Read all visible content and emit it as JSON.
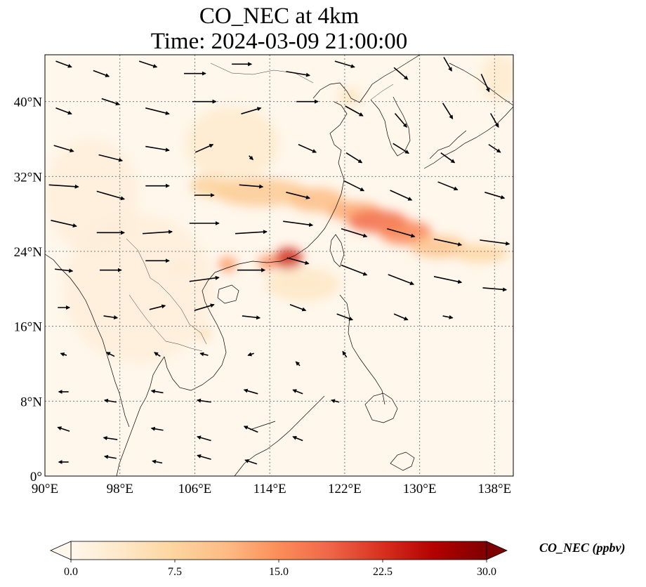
{
  "title": "CO_NEC at 4km",
  "subtitle": "Time: 2024-03-09 21:00:00",
  "map": {
    "projection": "PlateCarree",
    "lon_range": [
      90,
      140
    ],
    "lat_range": [
      0,
      45
    ],
    "gridlines": true,
    "lon_ticks": [
      90,
      98,
      106,
      114,
      122,
      130,
      138
    ],
    "lat_ticks": [
      0,
      8,
      16,
      24,
      32,
      40
    ],
    "lon_tick_labels": [
      "90°E",
      "98°E",
      "106°E",
      "114°E",
      "122°E",
      "130°E",
      "138°E"
    ],
    "lat_tick_labels": [
      "0°",
      "8°N",
      "16°N",
      "24°N",
      "32°N",
      "40°N"
    ]
  },
  "colorbar": {
    "label": "CO_NEC (ppbv)",
    "min": 0,
    "max": 30,
    "ticks": [
      0,
      7.5,
      15,
      22.5,
      30
    ],
    "tick_labels": [
      "0.0",
      "7.5",
      "15.0",
      "22.5",
      "30.0"
    ],
    "colormap": "OrRd",
    "colors": [
      "#fff7ec",
      "#fee8c8",
      "#fdd49e",
      "#fdbb84",
      "#fc8d59",
      "#ef6548",
      "#d7301f",
      "#b30000",
      "#7f0000"
    ],
    "extend": "both"
  },
  "plumes": [
    {
      "lon": 116.0,
      "lat": 23.2,
      "value": 23,
      "r_lon": 1.5,
      "r_lat": 1.2
    },
    {
      "lon": 113.8,
      "lat": 22.8,
      "value": 15,
      "r_lon": 1.0,
      "r_lat": 0.8
    },
    {
      "lon": 109.5,
      "lat": 22.6,
      "value": 14,
      "r_lon": 1.0,
      "r_lat": 0.8
    },
    {
      "lon": 104.5,
      "lat": 22.2,
      "value": 9,
      "r_lon": 0.8,
      "r_lat": 0.5
    },
    {
      "lon": 107.0,
      "lat": 15.2,
      "value": 6,
      "r_lon": 0.7,
      "r_lat": 0.7
    },
    {
      "lon": 123.0,
      "lat": 28.3,
      "value": 13,
      "r_lon": 3.0,
      "r_lat": 1.0
    },
    {
      "lon": 125.5,
      "lat": 27.2,
      "value": 18,
      "r_lon": 3.2,
      "r_lat": 1.2
    },
    {
      "lon": 128.5,
      "lat": 26.0,
      "value": 16,
      "r_lon": 2.8,
      "r_lat": 1.3
    },
    {
      "lon": 132.0,
      "lat": 24.5,
      "value": 10,
      "r_lon": 3.0,
      "r_lat": 1.2
    },
    {
      "lon": 136.5,
      "lat": 23.8,
      "value": 7,
      "r_lon": 3.0,
      "r_lat": 1.0
    },
    {
      "lon": 113.0,
      "lat": 30.3,
      "value": 9,
      "r_lon": 5.0,
      "r_lat": 1.5
    },
    {
      "lon": 108.0,
      "lat": 31.0,
      "value": 8,
      "r_lon": 2.5,
      "r_lat": 1.2
    },
    {
      "lon": 119.0,
      "lat": 29.5,
      "value": 11,
      "r_lon": 3.0,
      "r_lat": 1.3
    },
    {
      "lon": 117.5,
      "lat": 20.5,
      "value": 4,
      "r_lon": 4.0,
      "r_lat": 1.8
    },
    {
      "lon": 110.0,
      "lat": 35.5,
      "value": 3,
      "r_lon": 5.0,
      "r_lat": 4.0
    },
    {
      "lon": 122.5,
      "lat": 40.5,
      "value": 4,
      "r_lon": 1.3,
      "r_lat": 1.0
    },
    {
      "lon": 138.5,
      "lat": 42.5,
      "value": 3,
      "r_lon": 2.0,
      "r_lat": 2.5
    },
    {
      "lon": 95.0,
      "lat": 30.0,
      "value": 2,
      "r_lon": 5.0,
      "r_lat": 6.0
    },
    {
      "lon": 100.0,
      "lat": 20.0,
      "value": 2,
      "r_lon": 8.0,
      "r_lat": 8.0
    }
  ],
  "wind_field": {
    "description": "vector arrows",
    "vectors": [
      {
        "lon": 92,
        "lat": 44,
        "u": 1.6,
        "v": -0.6
      },
      {
        "lon": 96,
        "lat": 43,
        "u": 1.6,
        "v": -0.6
      },
      {
        "lon": 101,
        "lat": 44,
        "u": 1.8,
        "v": -0.6
      },
      {
        "lon": 106,
        "lat": 43,
        "u": 2.2,
        "v": 0.0
      },
      {
        "lon": 111,
        "lat": 44,
        "u": 2.0,
        "v": 0.0
      },
      {
        "lon": 117,
        "lat": 43,
        "u": 2.4,
        "v": -0.4
      },
      {
        "lon": 122,
        "lat": 44,
        "u": 2.0,
        "v": -0.6
      },
      {
        "lon": 128,
        "lat": 43,
        "u": 1.4,
        "v": -1.2
      },
      {
        "lon": 133,
        "lat": 44,
        "u": 0.8,
        "v": -1.4
      },
      {
        "lon": 137,
        "lat": 42,
        "u": 0.8,
        "v": -1.8
      },
      {
        "lon": 92,
        "lat": 39,
        "u": 1.6,
        "v": -0.6
      },
      {
        "lon": 97,
        "lat": 40,
        "u": 1.8,
        "v": -0.6
      },
      {
        "lon": 102,
        "lat": 39,
        "u": 2.4,
        "v": -0.6
      },
      {
        "lon": 107,
        "lat": 40,
        "u": 2.4,
        "v": 0.0
      },
      {
        "lon": 112,
        "lat": 39,
        "u": 2.0,
        "v": 0.6
      },
      {
        "lon": 118,
        "lat": 40,
        "u": 2.2,
        "v": 0.0
      },
      {
        "lon": 123,
        "lat": 39,
        "u": 1.8,
        "v": -1.0
      },
      {
        "lon": 128,
        "lat": 38,
        "u": 1.2,
        "v": -1.4
      },
      {
        "lon": 133,
        "lat": 39,
        "u": 1.0,
        "v": -1.6
      },
      {
        "lon": 138,
        "lat": 38,
        "u": 0.8,
        "v": -1.4
      },
      {
        "lon": 92,
        "lat": 35,
        "u": 2.0,
        "v": -0.6
      },
      {
        "lon": 97,
        "lat": 34,
        "u": 2.4,
        "v": -0.6
      },
      {
        "lon": 102,
        "lat": 35,
        "u": 2.4,
        "v": -0.4
      },
      {
        "lon": 107,
        "lat": 35,
        "u": 1.8,
        "v": 0.8
      },
      {
        "lon": 112,
        "lat": 34,
        "u": 0.4,
        "v": -0.4
      },
      {
        "lon": 118,
        "lat": 35,
        "u": 1.8,
        "v": -0.8
      },
      {
        "lon": 123,
        "lat": 34,
        "u": 1.6,
        "v": -1.0
      },
      {
        "lon": 128,
        "lat": 35,
        "u": 1.6,
        "v": -1.0
      },
      {
        "lon": 133,
        "lat": 34,
        "u": 1.4,
        "v": -1.0
      },
      {
        "lon": 138,
        "lat": 35,
        "u": 1.2,
        "v": -0.8
      },
      {
        "lon": 92,
        "lat": 31,
        "u": 3.0,
        "v": -0.2
      },
      {
        "lon": 97,
        "lat": 30,
        "u": 2.8,
        "v": -0.8
      },
      {
        "lon": 102,
        "lat": 31,
        "u": 2.4,
        "v": 0.0
      },
      {
        "lon": 107,
        "lat": 30,
        "u": 2.0,
        "v": 0.0
      },
      {
        "lon": 112,
        "lat": 31,
        "u": 2.4,
        "v": -0.2
      },
      {
        "lon": 117,
        "lat": 30,
        "u": 2.4,
        "v": -0.6
      },
      {
        "lon": 123,
        "lat": 31,
        "u": 2.0,
        "v": -1.0
      },
      {
        "lon": 128,
        "lat": 30,
        "u": 2.2,
        "v": -1.0
      },
      {
        "lon": 133,
        "lat": 31,
        "u": 2.0,
        "v": -0.8
      },
      {
        "lon": 138,
        "lat": 30,
        "u": 2.0,
        "v": -0.6
      },
      {
        "lon": 92,
        "lat": 27,
        "u": 2.6,
        "v": -0.6
      },
      {
        "lon": 97,
        "lat": 26,
        "u": 2.8,
        "v": 0.0
      },
      {
        "lon": 102,
        "lat": 26,
        "u": 3.0,
        "v": 0.2
      },
      {
        "lon": 107,
        "lat": 27,
        "u": 3.0,
        "v": 0.0
      },
      {
        "lon": 112,
        "lat": 26,
        "u": 3.2,
        "v": 0.2
      },
      {
        "lon": 117,
        "lat": 27,
        "u": 3.0,
        "v": -0.4
      },
      {
        "lon": 123,
        "lat": 26,
        "u": 2.6,
        "v": -0.8
      },
      {
        "lon": 128,
        "lat": 26,
        "u": 2.8,
        "v": -0.8
      },
      {
        "lon": 133,
        "lat": 25,
        "u": 2.8,
        "v": -0.6
      },
      {
        "lon": 138,
        "lat": 25,
        "u": 3.0,
        "v": -0.4
      },
      {
        "lon": 92,
        "lat": 22,
        "u": 1.8,
        "v": -0.2
      },
      {
        "lon": 97,
        "lat": 22,
        "u": 2.2,
        "v": 0.0
      },
      {
        "lon": 102,
        "lat": 23,
        "u": 2.4,
        "v": 0.0
      },
      {
        "lon": 107,
        "lat": 21,
        "u": 3.0,
        "v": 0.4
      },
      {
        "lon": 112,
        "lat": 22,
        "u": 2.8,
        "v": 0.0
      },
      {
        "lon": 117,
        "lat": 23,
        "u": 2.2,
        "v": -0.6
      },
      {
        "lon": 123,
        "lat": 22,
        "u": 2.6,
        "v": -1.0
      },
      {
        "lon": 128,
        "lat": 21,
        "u": 2.6,
        "v": -1.0
      },
      {
        "lon": 133,
        "lat": 21,
        "u": 2.8,
        "v": -0.6
      },
      {
        "lon": 138,
        "lat": 20,
        "u": 2.4,
        "v": -0.2
      },
      {
        "lon": 92,
        "lat": 18,
        "u": 1.2,
        "v": 0.0
      },
      {
        "lon": 97,
        "lat": 17,
        "u": 1.4,
        "v": -0.2
      },
      {
        "lon": 102,
        "lat": 18,
        "u": 1.6,
        "v": 0.4
      },
      {
        "lon": 107,
        "lat": 18,
        "u": 2.0,
        "v": 0.6
      },
      {
        "lon": 112,
        "lat": 17,
        "u": 1.8,
        "v": -0.2
      },
      {
        "lon": 117,
        "lat": 18,
        "u": 1.6,
        "v": -0.6
      },
      {
        "lon": 122,
        "lat": 17,
        "u": 1.6,
        "v": -0.6
      },
      {
        "lon": 128,
        "lat": 17,
        "u": 1.4,
        "v": -0.6
      },
      {
        "lon": 133,
        "lat": 17,
        "u": 1.0,
        "v": -0.2
      },
      {
        "lon": 92,
        "lat": 13,
        "u": -0.6,
        "v": 0.2
      },
      {
        "lon": 97,
        "lat": 13,
        "u": -0.8,
        "v": 0.4
      },
      {
        "lon": 102,
        "lat": 13,
        "u": -0.6,
        "v": 0.4
      },
      {
        "lon": 107,
        "lat": 13,
        "u": -0.8,
        "v": 0.2
      },
      {
        "lon": 112,
        "lat": 13,
        "u": -0.6,
        "v": -0.2
      },
      {
        "lon": 117,
        "lat": 12,
        "u": -0.4,
        "v": 0.4
      },
      {
        "lon": 122,
        "lat": 13,
        "u": -0.4,
        "v": 0.6
      },
      {
        "lon": 92,
        "lat": 9,
        "u": -1.0,
        "v": 0.0
      },
      {
        "lon": 97,
        "lat": 8,
        "u": -1.2,
        "v": 0.2
      },
      {
        "lon": 102,
        "lat": 9,
        "u": -1.2,
        "v": 0.2
      },
      {
        "lon": 107,
        "lat": 8,
        "u": -1.4,
        "v": 0.2
      },
      {
        "lon": 112,
        "lat": 9,
        "u": -1.4,
        "v": 0.4
      },
      {
        "lon": 117,
        "lat": 9,
        "u": -1.0,
        "v": 0.4
      },
      {
        "lon": 121,
        "lat": 8,
        "u": -0.8,
        "v": 0.2
      },
      {
        "lon": 92,
        "lat": 5,
        "u": -1.2,
        "v": 0.4
      },
      {
        "lon": 97,
        "lat": 4,
        "u": -1.4,
        "v": 0.2
      },
      {
        "lon": 102,
        "lat": 5,
        "u": -1.2,
        "v": 0.2
      },
      {
        "lon": 107,
        "lat": 4,
        "u": -1.4,
        "v": 0.4
      },
      {
        "lon": 112,
        "lat": 5,
        "u": -1.4,
        "v": 0.6
      },
      {
        "lon": 117,
        "lat": 4,
        "u": -1.0,
        "v": 0.4
      },
      {
        "lon": 92,
        "lat": 1.5,
        "u": -1.0,
        "v": 0.0
      },
      {
        "lon": 97,
        "lat": 2,
        "u": -1.2,
        "v": 0.2
      },
      {
        "lon": 102,
        "lat": 1.5,
        "u": -1.0,
        "v": 0.2
      },
      {
        "lon": 107,
        "lat": 2,
        "u": -1.4,
        "v": 0.4
      },
      {
        "lon": 112,
        "lat": 1.5,
        "u": -1.2,
        "v": 0.4
      }
    ]
  }
}
